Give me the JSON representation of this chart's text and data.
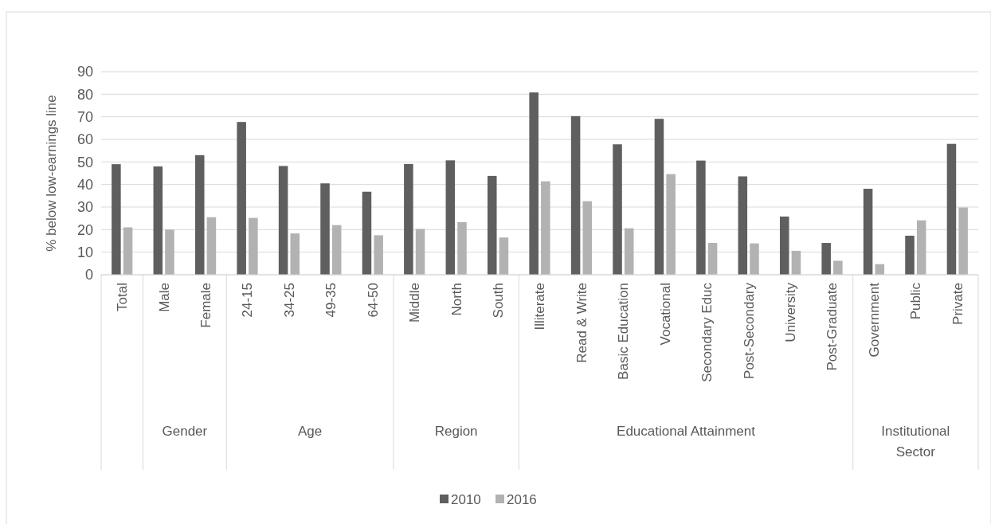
{
  "chart_data": {
    "type": "bar",
    "ylabel": "% below low-earnings line",
    "categories": [
      "Total",
      "Male",
      "Female",
      "24-15",
      "34-25",
      "49-35",
      "64-50",
      "Middle",
      "North",
      "South",
      "Illiterate",
      "Read & Write",
      "Basic Education",
      "Vocational",
      "Secondary Educ",
      "Post-Secondary",
      "University",
      "Post-Graduate",
      "Government",
      "Public",
      "Private"
    ],
    "annotations": [
      "Gender",
      "Age",
      "Region",
      "Educational Attainment",
      "Institutional Sector"
    ],
    "series": [
      {
        "name": "2010",
        "color": "#5f5f5f",
        "values": [
          49,
          48,
          53,
          67.7,
          48.2,
          40.5,
          36.8,
          49.1,
          50.7,
          43.8,
          80.8,
          70.3,
          57.8,
          69.1,
          50.6,
          43.6,
          25.8,
          14.1,
          38.1,
          17.3,
          58
        ]
      },
      {
        "name": "2016",
        "color": "#b2b2b2",
        "values": [
          21,
          20,
          25.5,
          25.2,
          18.3,
          22,
          17.5,
          20.3,
          23.3,
          16.5,
          41.4,
          32.6,
          20.6,
          44.6,
          14.1,
          13.9,
          10.6,
          6.2,
          4.7,
          24.1,
          29.8
        ]
      }
    ],
    "ylim": [
      0,
      90
    ],
    "yticks": [
      0,
      10,
      20,
      30,
      40,
      50,
      60,
      70,
      80,
      90
    ],
    "grid": "y",
    "legend": "bottom"
  }
}
